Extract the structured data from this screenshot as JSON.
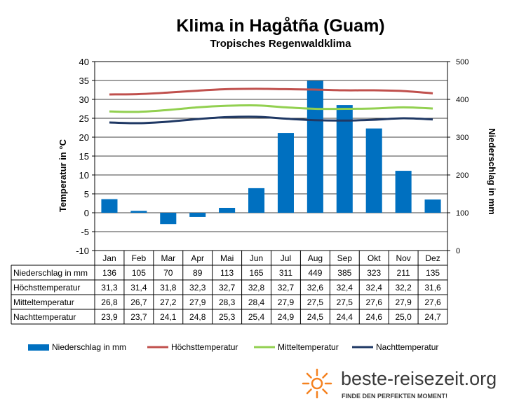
{
  "chart_data": {
    "type": "bar",
    "title": "Klima in Hagåtña (Guam)",
    "subtitle": "Tropisches Regenwaldklima",
    "categories": [
      "Jan",
      "Feb",
      "Mar",
      "Apr",
      "Mai",
      "Jun",
      "Jul",
      "Aug",
      "Sep",
      "Okt",
      "Nov",
      "Dez"
    ],
    "ylabel_left": "Temperatur in °C",
    "ylabel_right": "Niederschlag in mm",
    "ylim_left": [
      -10,
      40
    ],
    "ylim_right": [
      0,
      500
    ],
    "yticks_left": [
      "-10",
      "-5",
      "0",
      "5",
      "10",
      "15",
      "20",
      "25",
      "30",
      "35",
      "40"
    ],
    "yticks_right": [
      "0",
      "100",
      "200",
      "300",
      "400",
      "500"
    ],
    "series": [
      {
        "name": "Niederschlag in mm",
        "type": "bar",
        "axis": "right",
        "color": "#0070c0",
        "values": [
          136,
          105,
          70,
          89,
          113,
          165,
          311,
          449,
          385,
          323,
          211,
          135
        ],
        "labels": [
          "136",
          "105",
          "70",
          "89",
          "113",
          "165",
          "311",
          "449",
          "385",
          "323",
          "211",
          "135"
        ]
      },
      {
        "name": "Höchsttemperatur",
        "type": "line",
        "axis": "left",
        "color": "#c0504d",
        "values": [
          31.3,
          31.4,
          31.8,
          32.3,
          32.7,
          32.8,
          32.7,
          32.6,
          32.4,
          32.4,
          32.2,
          31.6
        ],
        "labels": [
          "31,3",
          "31,4",
          "31,8",
          "32,3",
          "32,7",
          "32,8",
          "32,7",
          "32,6",
          "32,4",
          "32,4",
          "32,2",
          "31,6"
        ]
      },
      {
        "name": "Mitteltemperatur",
        "type": "line",
        "axis": "left",
        "color": "#92d050",
        "values": [
          26.8,
          26.7,
          27.2,
          27.9,
          28.3,
          28.4,
          27.9,
          27.5,
          27.5,
          27.6,
          27.9,
          27.6
        ],
        "labels": [
          "26,8",
          "26,7",
          "27,2",
          "27,9",
          "28,3",
          "28,4",
          "27,9",
          "27,5",
          "27,5",
          "27,6",
          "27,9",
          "27,6"
        ]
      },
      {
        "name": "Nachttemperatur",
        "type": "line",
        "axis": "left",
        "color": "#1f3864",
        "values": [
          23.9,
          23.7,
          24.1,
          24.8,
          25.3,
          25.4,
          24.9,
          24.5,
          24.4,
          24.6,
          25.0,
          24.7
        ],
        "labels": [
          "23,9",
          "23,7",
          "24,1",
          "24,8",
          "25,3",
          "25,4",
          "24,9",
          "24,5",
          "24,4",
          "24,6",
          "25,0",
          "24,7"
        ]
      }
    ]
  },
  "branding": {
    "site": "beste-reisezeit.org",
    "tagline": "FINDE DEN PERFEKTEN MOMENT!",
    "sun_color": "#f58220"
  }
}
